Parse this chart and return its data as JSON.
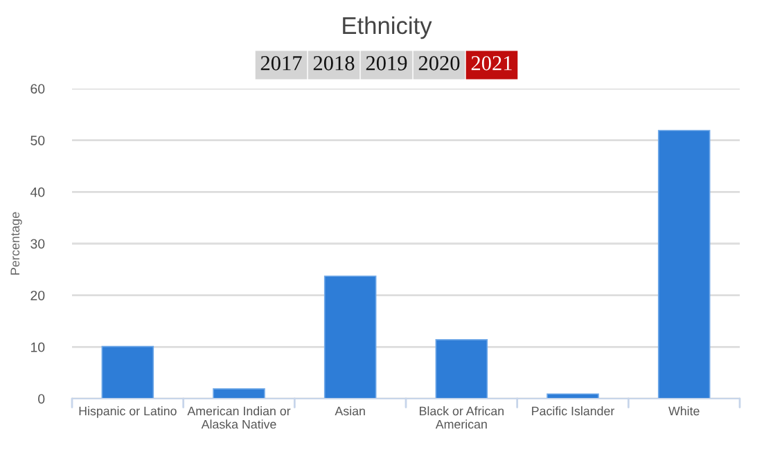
{
  "chart_data": {
    "type": "bar",
    "title": "Ethnicity",
    "annotations": [
      "2017",
      "2018",
      "2019",
      "2020",
      "2021"
    ],
    "categories": [
      "Hispanic or Latino",
      "American Indian or Alaska Native",
      "Asian",
      "Black or African American",
      "Pacific Islander",
      "White"
    ],
    "values": [
      10.1,
      1.9,
      23.7,
      11.4,
      0.9,
      51.9
    ],
    "color": "#2e7dd7",
    "ylabel": "Percentage",
    "ylim": [
      0,
      60
    ],
    "yticks": [
      0,
      10,
      20,
      30,
      40,
      50,
      60
    ],
    "grid": "y",
    "legend": false
  }
}
